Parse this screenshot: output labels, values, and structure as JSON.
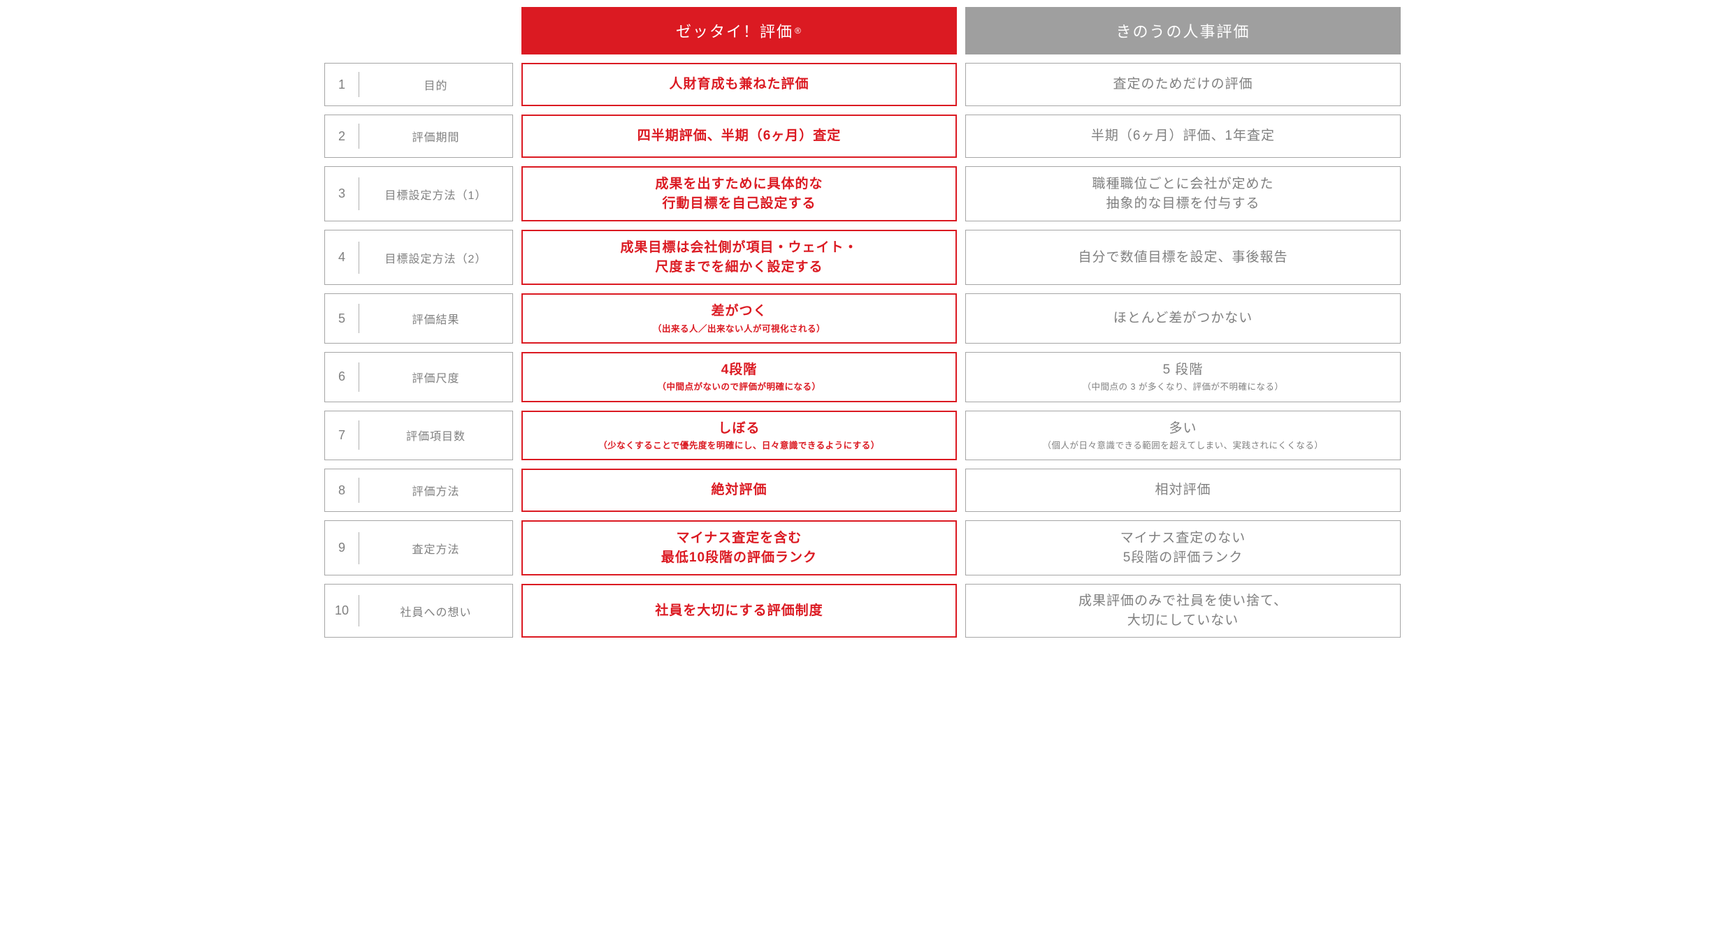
{
  "colors": {
    "primary_red": "#db1a22",
    "header_gray": "#9f9f9f",
    "border_gray": "#a6a6a6",
    "text_gray": "#808080",
    "white": "#ffffff"
  },
  "layout": {
    "label_col_width": 270,
    "gap": 12,
    "row_min_height": 62,
    "label_fontsize": 16,
    "num_fontsize": 18,
    "header_fontsize": 22,
    "value_main_fontsize": 19,
    "value_sub_fontsize": 12.5
  },
  "headers": {
    "col_a": "ゼッタイ！評価",
    "col_a_mark": "®",
    "col_b": "きのうの人事評価"
  },
  "rows": [
    {
      "num": "1",
      "label": "目的",
      "a_main": "人財育成も兼ねた評価",
      "a_sub": "",
      "b_main": "査定のためだけの評価",
      "b_sub": ""
    },
    {
      "num": "2",
      "label": "評価期間",
      "a_main": "四半期評価、半期（6ヶ月）査定",
      "a_sub": "",
      "b_main": "半期（6ヶ月）評価、1年査定",
      "b_sub": ""
    },
    {
      "num": "3",
      "label": "目標設定方法（1）",
      "a_main": "成果を出すために具体的な\n行動目標を自己設定する",
      "a_sub": "",
      "b_main": "職種職位ごとに会社が定めた\n抽象的な目標を付与する",
      "b_sub": ""
    },
    {
      "num": "4",
      "label": "目標設定方法（2）",
      "a_main": "成果目標は会社側が項目・ウェイト・\n尺度までを細かく設定する",
      "a_sub": "",
      "b_main": "自分で数値目標を設定、事後報告",
      "b_sub": ""
    },
    {
      "num": "5",
      "label": "評価結果",
      "a_main": "差がつく",
      "a_sub": "（出来る人／出来ない人が可視化される）",
      "b_main": "ほとんど差がつかない",
      "b_sub": ""
    },
    {
      "num": "6",
      "label": "評価尺度",
      "a_main": "4段階",
      "a_sub": "（中間点がないので評価が明確になる）",
      "b_main": "5 段階",
      "b_sub": "（中間点の 3 が多くなり、評価が不明確になる）"
    },
    {
      "num": "7",
      "label": "評価項目数",
      "a_main": "しぼる",
      "a_sub": "（少なくすることで優先度を明確にし、日々意識できるようにする）",
      "b_main": "多い",
      "b_sub": "（個人が日々意識できる範囲を超えてしまい、実践されにくくなる）"
    },
    {
      "num": "8",
      "label": "評価方法",
      "a_main": "絶対評価",
      "a_sub": "",
      "b_main": "相対評価",
      "b_sub": ""
    },
    {
      "num": "9",
      "label": "査定方法",
      "a_main": "マイナス査定を含む\n最低10段階の評価ランク",
      "a_sub": "",
      "b_main": "マイナス査定のない\n5段階の評価ランク",
      "b_sub": ""
    },
    {
      "num": "10",
      "label": "社員への想い",
      "a_main": "社員を大切にする評価制度",
      "a_sub": "",
      "b_main": "成果評価のみで社員を使い捨て、\n大切にしていない",
      "b_sub": ""
    }
  ]
}
